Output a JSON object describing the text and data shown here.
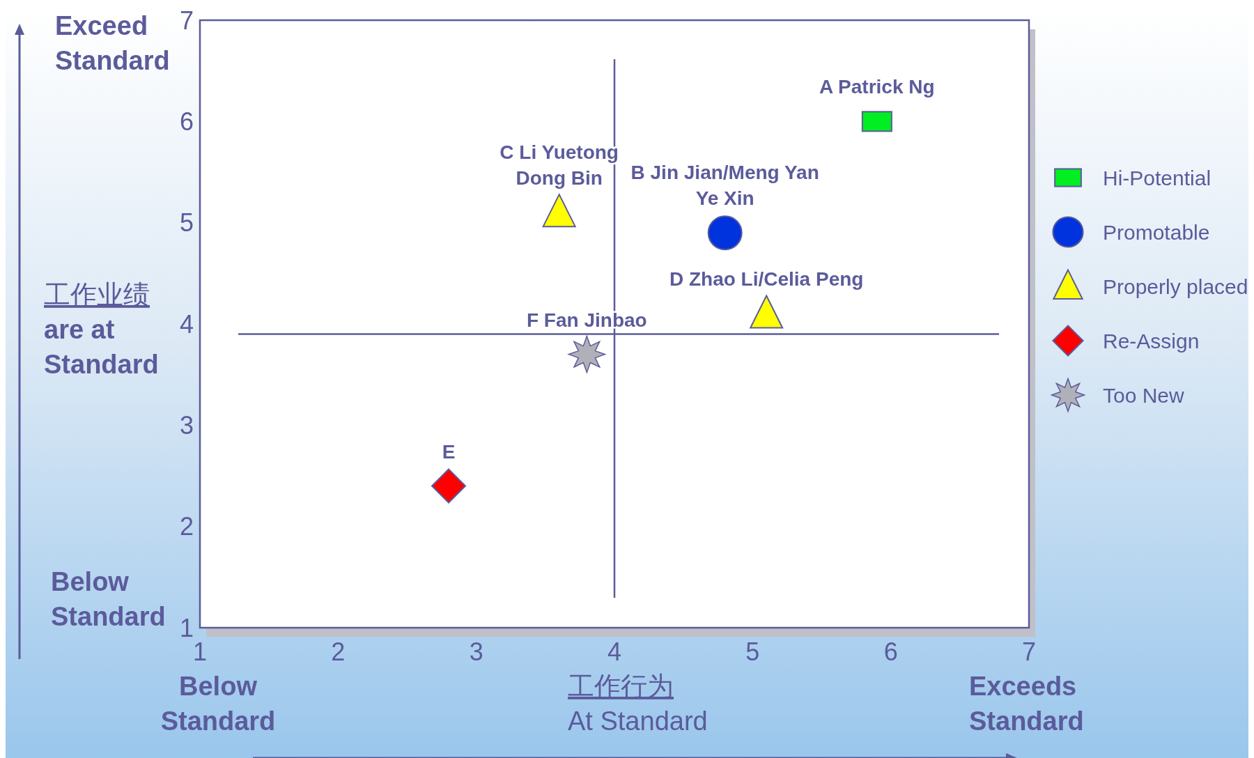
{
  "chart_data": {
    "type": "scatter",
    "xlabel": "工作行为",
    "ylabel": "工作业绩",
    "xlim": [
      1,
      7
    ],
    "ylim": [
      1,
      7
    ],
    "xticks": [
      1,
      2,
      3,
      4,
      5,
      6,
      7
    ],
    "yticks": [
      1,
      2,
      3,
      4,
      5,
      6,
      7
    ],
    "legend": "right",
    "series": [
      {
        "name": "Hi-Potential",
        "color": "#00ee22",
        "marker": "square",
        "x": [
          5.9
        ],
        "values": [
          6.0
        ]
      },
      {
        "name": "Promotable",
        "color": "#0033dd",
        "marker": "circle",
        "x": [
          4.8
        ],
        "values": [
          4.9
        ]
      },
      {
        "name": "Properly placed",
        "color": "#ffff00",
        "marker": "triangle",
        "x": [
          3.6,
          5.1
        ],
        "values": [
          5.1,
          4.1
        ]
      },
      {
        "name": "Re-Assign",
        "color": "#ff0000",
        "marker": "diamond",
        "x": [
          2.8
        ],
        "values": [
          2.4
        ]
      },
      {
        "name": "Too New",
        "color": "#b0b0b8",
        "marker": "star",
        "x": [
          3.8
        ],
        "values": [
          3.7
        ]
      }
    ],
    "ref_lines": [
      {
        "axis": "x",
        "value": 4
      },
      {
        "axis": "y",
        "value": 3.9
      }
    ],
    "annotations": [
      "Exceed\nStandard",
      "are at\nStandard",
      "Below\nStandard",
      "Below\nStandard",
      "At  Standard",
      "Exceeds\nStandard",
      {
        "text": "A Patrick Ng",
        "x": 5.9,
        "y": 6.0
      },
      {
        "text": "B Jin Jian/Meng Yan\nYe Xin",
        "x": 4.8,
        "y": 4.9
      },
      {
        "text": "C Li Yuetong\nDong Bin",
        "x": 3.6,
        "y": 5.1
      },
      {
        "text": "D Zhao Li/Celia Peng",
        "x": 5.1,
        "y": 4.1
      },
      {
        "text": "E",
        "x": 2.8,
        "y": 2.4
      },
      {
        "text": "F Fan Jinbao",
        "x": 3.8,
        "y": 3.7
      }
    ]
  }
}
